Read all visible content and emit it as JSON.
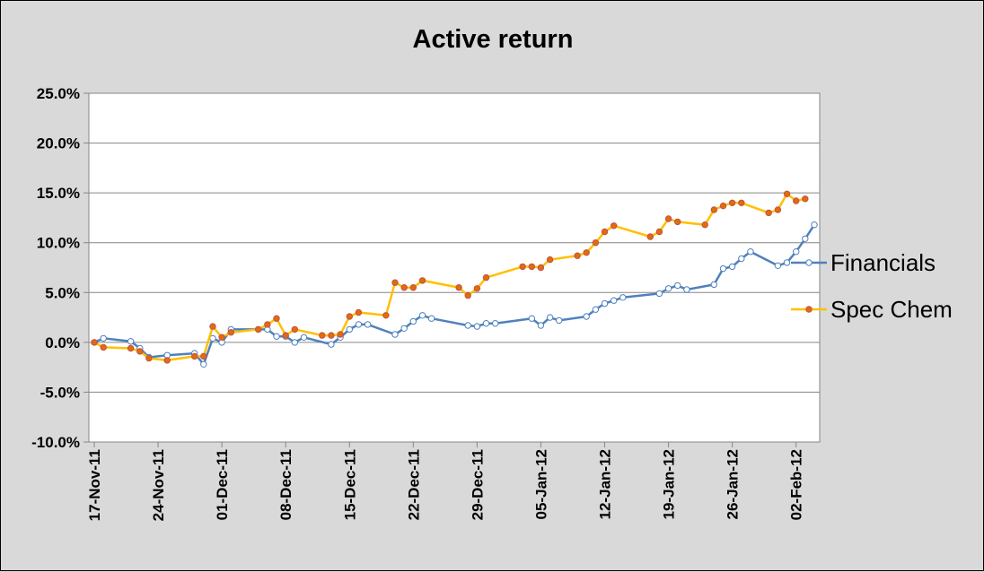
{
  "chart_data": {
    "type": "line",
    "title": "Active return",
    "xlabel": "",
    "ylabel": "",
    "ylim": [
      -0.1,
      0.25
    ],
    "y_ticks": [
      {
        "value": 0.25,
        "label": "25.0%"
      },
      {
        "value": 0.2,
        "label": "20.0%"
      },
      {
        "value": 0.15,
        "label": "15.0%"
      },
      {
        "value": 0.1,
        "label": "10.0%"
      },
      {
        "value": 0.05,
        "label": "5.0%"
      },
      {
        "value": 0.0,
        "label": "0.0%"
      },
      {
        "value": -0.05,
        "label": "-5.0%"
      },
      {
        "value": -0.1,
        "label": "-10.0%"
      }
    ],
    "x_range": [
      "2011-11-17",
      "2012-02-04"
    ],
    "x_ticks": [
      {
        "date": "2011-11-17",
        "label": "17-Nov-11"
      },
      {
        "date": "2011-11-24",
        "label": "24-Nov-11"
      },
      {
        "date": "2011-12-01",
        "label": "01-Dec-11"
      },
      {
        "date": "2011-12-08",
        "label": "08-Dec-11"
      },
      {
        "date": "2011-12-15",
        "label": "15-Dec-11"
      },
      {
        "date": "2011-12-22",
        "label": "22-Dec-11"
      },
      {
        "date": "2011-12-29",
        "label": "29-Dec-11"
      },
      {
        "date": "2012-01-05",
        "label": "05-Jan-12"
      },
      {
        "date": "2012-01-12",
        "label": "12-Jan-12"
      },
      {
        "date": "2012-01-19",
        "label": "19-Jan-12"
      },
      {
        "date": "2012-01-26",
        "label": "26-Jan-12"
      },
      {
        "date": "2012-02-02",
        "label": "02-Feb-12"
      }
    ],
    "grid": true,
    "legend_position": "right",
    "series": [
      {
        "name": "Financials",
        "color": "#4f81bd",
        "marker_fill": "#ffffff",
        "points": [
          [
            "2011-11-17",
            0.0
          ],
          [
            "2011-11-18",
            0.004
          ],
          [
            "2011-11-21",
            0.001
          ],
          [
            "2011-11-22",
            -0.006
          ],
          [
            "2011-11-23",
            -0.015
          ],
          [
            "2011-11-25",
            -0.013
          ],
          [
            "2011-11-28",
            -0.011
          ],
          [
            "2011-11-29",
            -0.022
          ],
          [
            "2011-11-30",
            0.004
          ],
          [
            "2011-12-01",
            0.0
          ],
          [
            "2011-12-02",
            0.013
          ],
          [
            "2011-12-05",
            0.013
          ],
          [
            "2011-12-06",
            0.013
          ],
          [
            "2011-12-07",
            0.006
          ],
          [
            "2011-12-08",
            0.006
          ],
          [
            "2011-12-09",
            0.0
          ],
          [
            "2011-12-10",
            0.005
          ],
          [
            "2011-12-13",
            -0.002
          ],
          [
            "2011-12-14",
            0.005
          ],
          [
            "2011-12-15",
            0.013
          ],
          [
            "2011-12-16",
            0.018
          ],
          [
            "2011-12-17",
            0.018
          ],
          [
            "2011-12-20",
            0.008
          ],
          [
            "2011-12-21",
            0.014
          ],
          [
            "2011-12-22",
            0.021
          ],
          [
            "2011-12-23",
            0.027
          ],
          [
            "2011-12-24",
            0.024
          ],
          [
            "2011-12-28",
            0.017
          ],
          [
            "2011-12-29",
            0.016
          ],
          [
            "2011-12-30",
            0.019
          ],
          [
            "2011-12-31",
            0.019
          ],
          [
            "2012-01-04",
            0.024
          ],
          [
            "2012-01-05",
            0.017
          ],
          [
            "2012-01-06",
            0.025
          ],
          [
            "2012-01-07",
            0.022
          ],
          [
            "2012-01-10",
            0.026
          ],
          [
            "2012-01-11",
            0.033
          ],
          [
            "2012-01-12",
            0.039
          ],
          [
            "2012-01-13",
            0.042
          ],
          [
            "2012-01-14",
            0.045
          ],
          [
            "2012-01-18",
            0.049
          ],
          [
            "2012-01-19",
            0.054
          ],
          [
            "2012-01-20",
            0.057
          ],
          [
            "2012-01-21",
            0.053
          ],
          [
            "2012-01-24",
            0.058
          ],
          [
            "2012-01-25",
            0.074
          ],
          [
            "2012-01-26",
            0.076
          ],
          [
            "2012-01-27",
            0.084
          ],
          [
            "2012-01-28",
            0.091
          ],
          [
            "2012-01-31",
            0.077
          ],
          [
            "2012-02-01",
            0.08
          ],
          [
            "2012-02-02",
            0.091
          ],
          [
            "2012-02-03",
            0.104
          ],
          [
            "2012-02-04",
            0.118
          ]
        ]
      },
      {
        "name": "Spec Chem",
        "color": "#ffc000",
        "marker_fill": "#e36c09",
        "points": [
          [
            "2011-11-17",
            0.0
          ],
          [
            "2011-11-18",
            -0.005
          ],
          [
            "2011-11-21",
            -0.006
          ],
          [
            "2011-11-22",
            -0.009
          ],
          [
            "2011-11-23",
            -0.016
          ],
          [
            "2011-11-25",
            -0.018
          ],
          [
            "2011-11-28",
            -0.014
          ],
          [
            "2011-11-29",
            -0.014
          ],
          [
            "2011-11-30",
            0.016
          ],
          [
            "2011-12-01",
            0.005
          ],
          [
            "2011-12-02",
            0.01
          ],
          [
            "2011-12-05",
            0.013
          ],
          [
            "2011-12-06",
            0.018
          ],
          [
            "2011-12-07",
            0.024
          ],
          [
            "2011-12-08",
            0.007
          ],
          [
            "2011-12-09",
            0.013
          ],
          [
            "2011-12-12",
            0.007
          ],
          [
            "2011-12-13",
            0.007
          ],
          [
            "2011-12-14",
            0.008
          ],
          [
            "2011-12-15",
            0.026
          ],
          [
            "2011-12-16",
            0.03
          ],
          [
            "2011-12-19",
            0.027
          ],
          [
            "2011-12-20",
            0.06
          ],
          [
            "2011-12-21",
            0.055
          ],
          [
            "2011-12-22",
            0.055
          ],
          [
            "2011-12-23",
            0.062
          ],
          [
            "2011-12-27",
            0.055
          ],
          [
            "2011-12-28",
            0.047
          ],
          [
            "2011-12-29",
            0.054
          ],
          [
            "2011-12-30",
            0.065
          ],
          [
            "2012-01-03",
            0.076
          ],
          [
            "2012-01-04",
            0.076
          ],
          [
            "2012-01-05",
            0.075
          ],
          [
            "2012-01-06",
            0.083
          ],
          [
            "2012-01-09",
            0.087
          ],
          [
            "2012-01-10",
            0.09
          ],
          [
            "2012-01-11",
            0.1
          ],
          [
            "2012-01-12",
            0.111
          ],
          [
            "2012-01-13",
            0.117
          ],
          [
            "2012-01-17",
            0.106
          ],
          [
            "2012-01-18",
            0.111
          ],
          [
            "2012-01-19",
            0.124
          ],
          [
            "2012-01-20",
            0.121
          ],
          [
            "2012-01-23",
            0.118
          ],
          [
            "2012-01-24",
            0.133
          ],
          [
            "2012-01-25",
            0.137
          ],
          [
            "2012-01-26",
            0.14
          ],
          [
            "2012-01-27",
            0.14
          ],
          [
            "2012-01-30",
            0.13
          ],
          [
            "2012-01-31",
            0.133
          ],
          [
            "2012-02-01",
            0.149
          ],
          [
            "2012-02-02",
            0.142
          ],
          [
            "2012-02-03",
            0.144
          ]
        ]
      }
    ]
  }
}
